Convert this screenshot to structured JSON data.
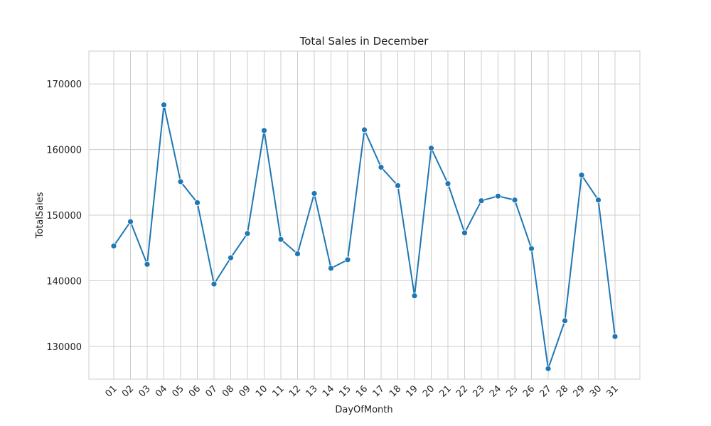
{
  "chart_data": {
    "type": "line",
    "title": "Total Sales in December",
    "xlabel": "DayOfMonth",
    "ylabel": "TotalSales",
    "categories": [
      "01",
      "02",
      "03",
      "04",
      "05",
      "06",
      "07",
      "08",
      "09",
      "10",
      "11",
      "12",
      "13",
      "14",
      "15",
      "16",
      "17",
      "18",
      "19",
      "20",
      "21",
      "22",
      "23",
      "24",
      "25",
      "26",
      "27",
      "28",
      "29",
      "30",
      "31"
    ],
    "series": [
      {
        "values": [
          145300,
          149000,
          142500,
          166800,
          155100,
          151900,
          139500,
          143500,
          147200,
          162900,
          146300,
          144100,
          153300,
          141900,
          143200,
          163000,
          157300,
          154500,
          137700,
          160200,
          154800,
          147300,
          152200,
          152900,
          152300,
          144900,
          126600,
          133900,
          156100,
          152300,
          131500
        ]
      }
    ],
    "ylim": [
      125000,
      175000
    ],
    "yticks": [
      130000,
      140000,
      150000,
      160000,
      170000
    ],
    "ytick_labels": [
      "130000",
      "140000",
      "150000",
      "160000",
      "170000"
    ],
    "grid": true,
    "line_color": "#1f77b4",
    "marker": "circle"
  }
}
